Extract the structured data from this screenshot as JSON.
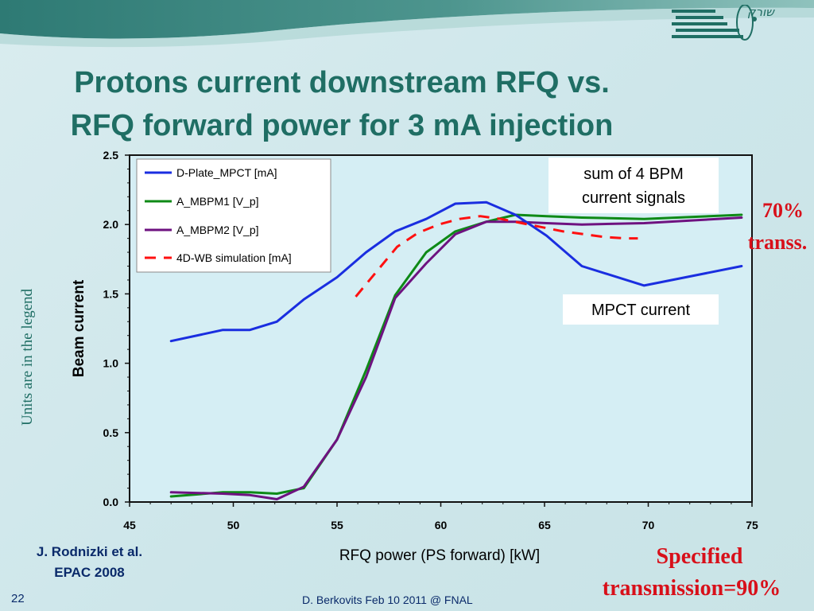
{
  "slide": {
    "title_line1": "Protons current downstream RFQ vs.",
    "title_line2": "RFQ forward power for 3 mA injection",
    "side_note": "Units are in the legend",
    "logo_text": "שורק",
    "note_70_line1": "70%",
    "note_70_line2": "transs.",
    "specified_line1": "Specified",
    "specified_line2": "transmission=90%",
    "credit_line1": "J. Rodnizki et al.",
    "credit_line2": "EPAC 2008",
    "slide_number": "22",
    "footer": "D. Berkovits Feb 10 2011 @ FNAL",
    "colors": {
      "title": "#1f6e64",
      "accent_red": "#d8101a",
      "banner": "#2a7a73"
    }
  },
  "chart_data": {
    "type": "line",
    "xlabel": "RFQ power (PS forward) [kW]",
    "ylabel": "Beam current",
    "xlim": [
      45,
      75
    ],
    "ylim": [
      0,
      2.5
    ],
    "x_ticks": [
      "45",
      "50",
      "55",
      "60",
      "65",
      "70",
      "75"
    ],
    "y_ticks": [
      "0.0",
      "0.5",
      "1.0",
      "1.5",
      "2.0",
      "2.5"
    ],
    "legend_position": "top-left",
    "grid": false,
    "series": [
      {
        "name": "D-Plate_MPCT [mA]",
        "color": "#1a2ee0",
        "style": "solid",
        "x": [
          47,
          49.5,
          50.8,
          52.1,
          53.4,
          55,
          56.4,
          57.8,
          59.3,
          60.7,
          62.2,
          63.6,
          65.1,
          66.8,
          69.8,
          74.5
        ],
        "y": [
          1.16,
          1.24,
          1.24,
          1.3,
          1.46,
          1.62,
          1.8,
          1.95,
          2.04,
          2.15,
          2.16,
          2.07,
          1.92,
          1.7,
          1.56,
          1.7
        ]
      },
      {
        "name": "A_MBPM1 [V_p]",
        "color": "#0e8a16",
        "style": "solid",
        "x": [
          47,
          49.5,
          50.8,
          52.1,
          53.4,
          55,
          56.4,
          57.8,
          59.3,
          60.7,
          62.2,
          63.6,
          65.1,
          66.8,
          69.8,
          74.5
        ],
        "y": [
          0.04,
          0.07,
          0.07,
          0.06,
          0.1,
          0.45,
          0.95,
          1.49,
          1.8,
          1.95,
          2.02,
          2.07,
          2.06,
          2.05,
          2.04,
          2.07
        ]
      },
      {
        "name": "A_MBPM2 [V_p]",
        "color": "#6e1280",
        "style": "solid",
        "x": [
          47,
          49.5,
          50.8,
          52.1,
          53.4,
          55,
          56.4,
          57.8,
          59.3,
          60.7,
          62.2,
          63.6,
          65.1,
          66.8,
          69.8,
          74.5
        ],
        "y": [
          0.07,
          0.06,
          0.05,
          0.02,
          0.11,
          0.45,
          0.9,
          1.47,
          1.72,
          1.93,
          2.02,
          2.02,
          2.01,
          2.0,
          2.01,
          2.05
        ]
      },
      {
        "name": "4D-WB simulation [mA]",
        "color": "#ff1010",
        "style": "dashed",
        "x": [
          55.9,
          56.9,
          57.9,
          58.9,
          59.9,
          60.9,
          61.9,
          62.9,
          63.9,
          64.9,
          65.9,
          66.9,
          67.9,
          68.9,
          69.5
        ],
        "y": [
          1.48,
          1.66,
          1.84,
          1.94,
          2.0,
          2.04,
          2.06,
          2.04,
          2.01,
          1.98,
          1.95,
          1.93,
          1.91,
          1.9,
          1.9
        ]
      }
    ],
    "annotations": [
      {
        "text_line1": "sum of 4 BPM",
        "text_line2": "current signals"
      },
      {
        "text_line1": "MPCT current"
      }
    ]
  }
}
